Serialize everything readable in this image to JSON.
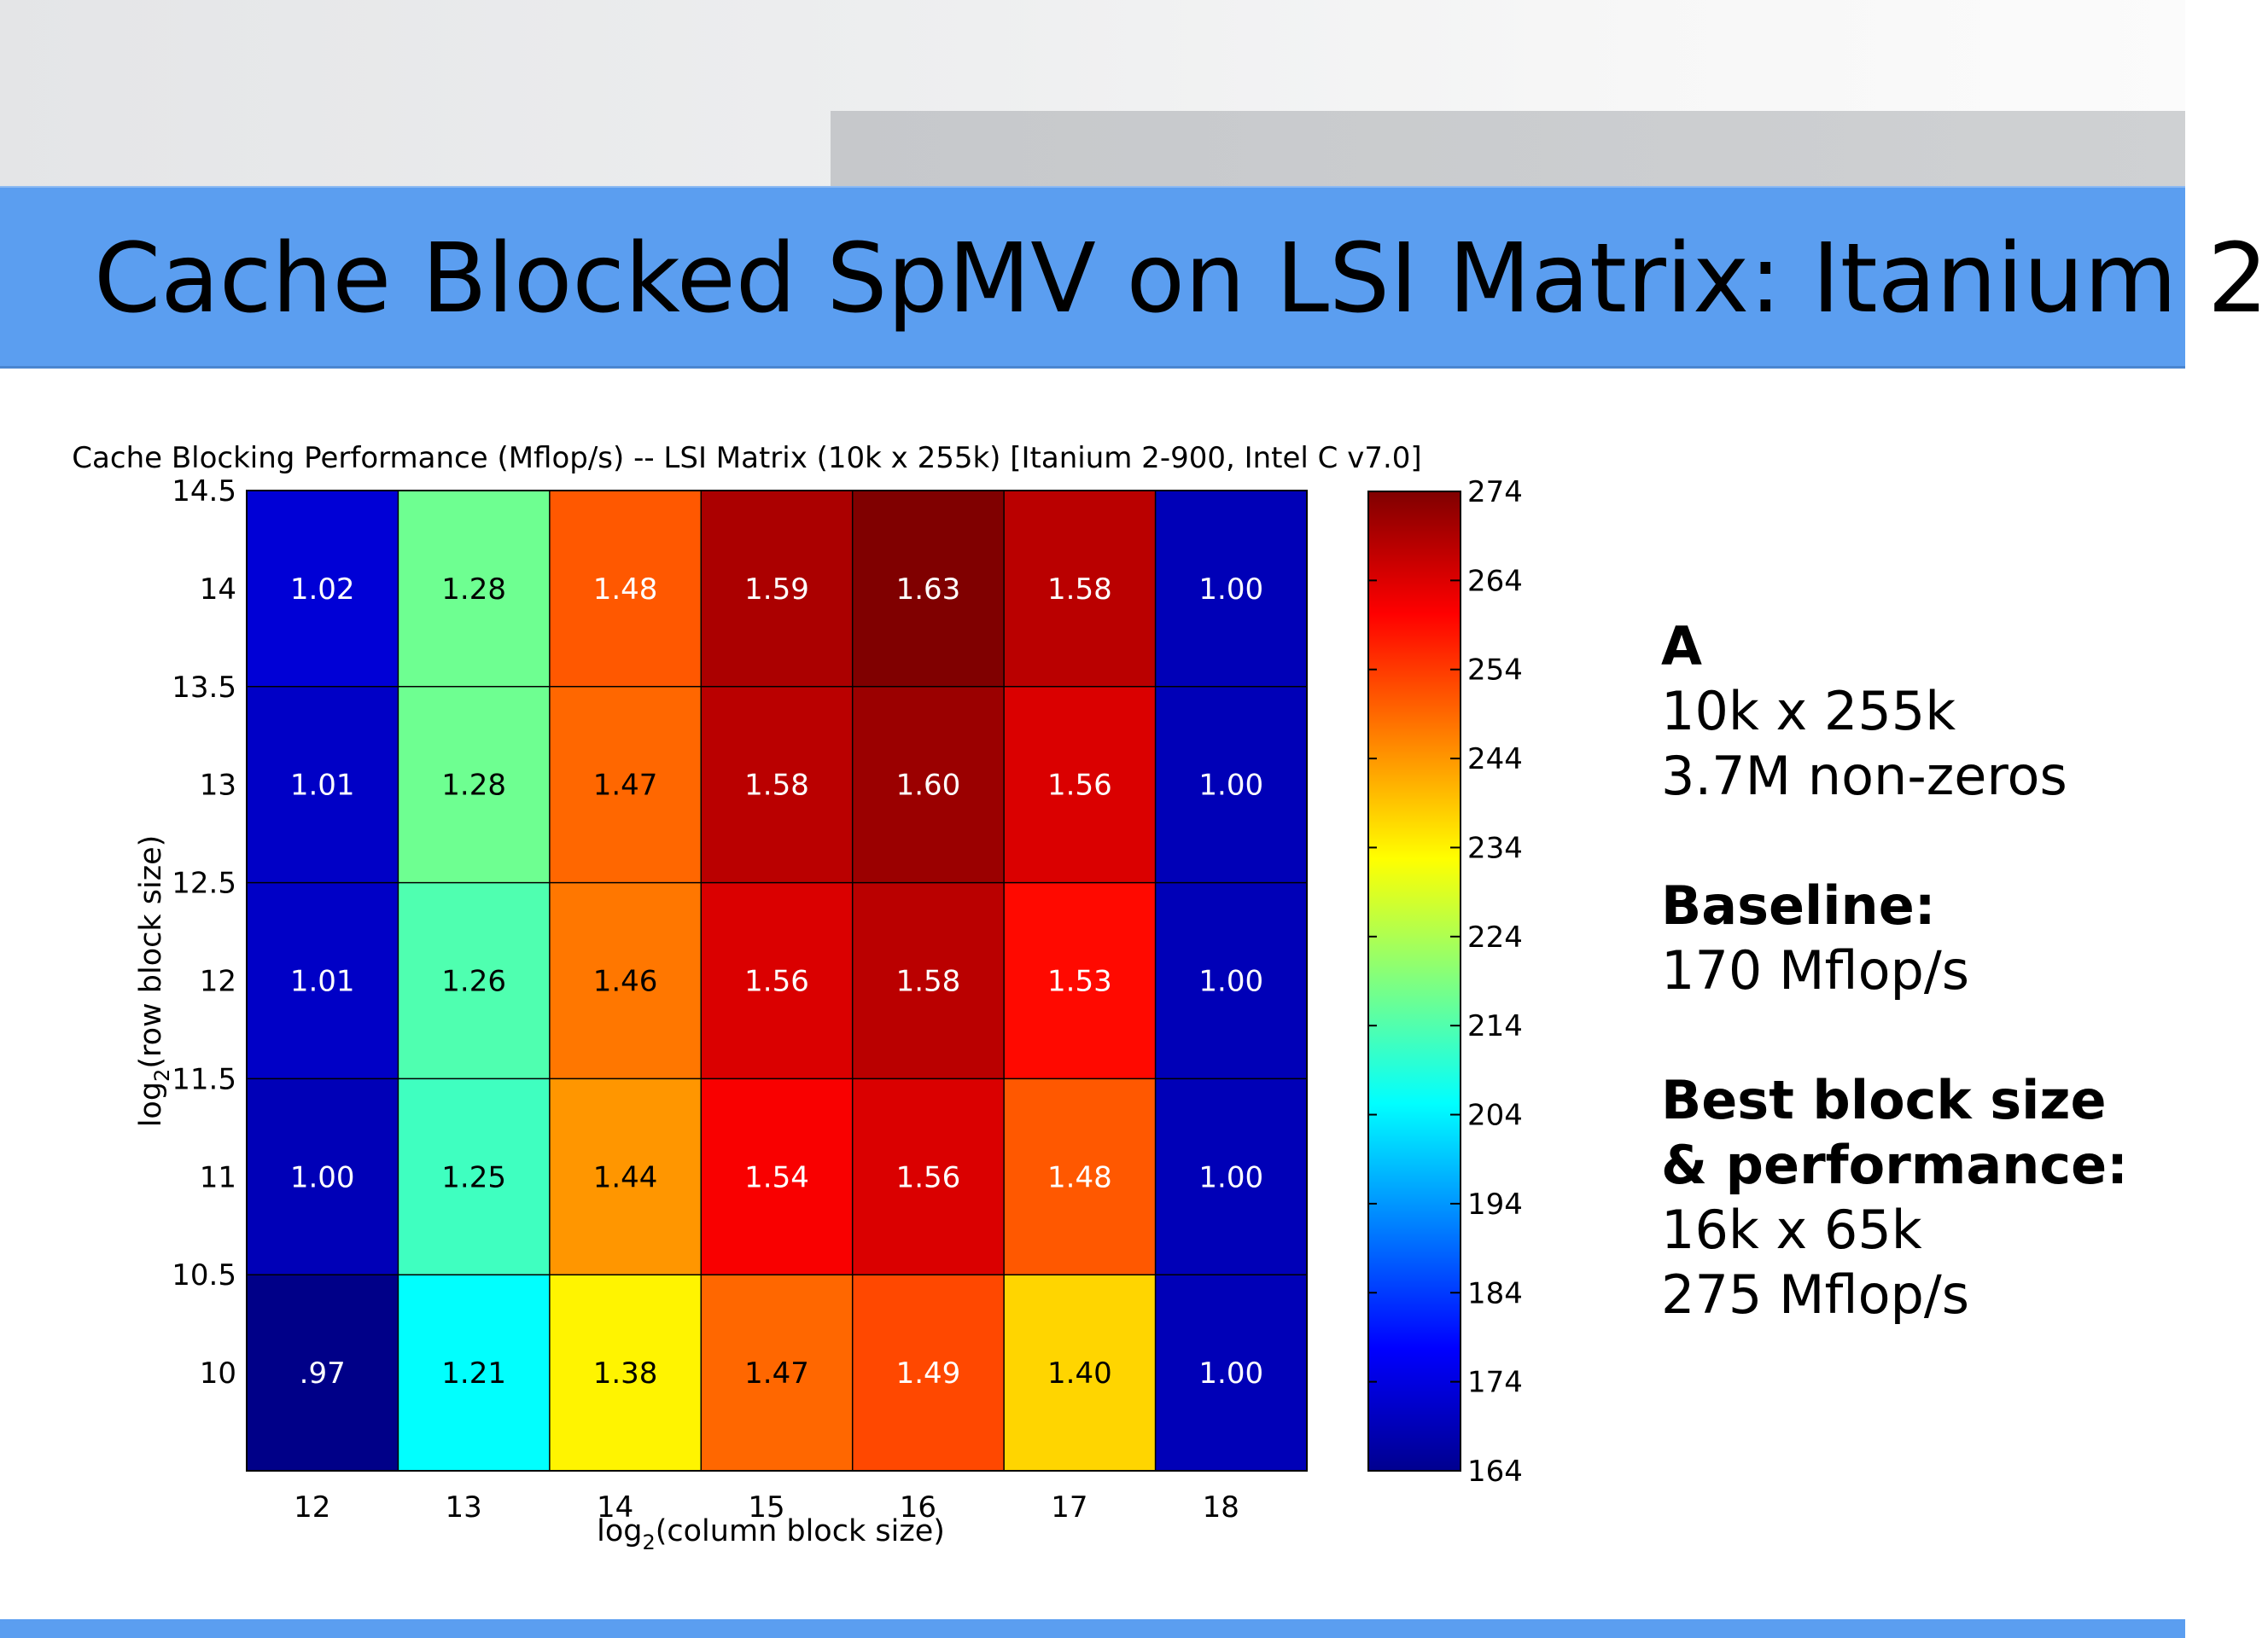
{
  "slide": {
    "title": "Cache Blocked SpMV on LSI Matrix: Itanium 2"
  },
  "side_panel": {
    "matrix_label": "A",
    "matrix_dims": "10k x 255k",
    "matrix_nnz": "3.7M non-zeros",
    "baseline_label": "Baseline:",
    "baseline_value": "170 Mflop/s",
    "best_label_line1": "Best block size",
    "best_label_line2": "& performance:",
    "best_block": "16k x 65k",
    "best_perf": "275 Mflop/s"
  },
  "chart_data": {
    "type": "heatmap",
    "title": "Cache Blocking Performance (Mflop/s) -- LSI Matrix (10k x 255k) [Itanium 2-900, Intel C v7.0]",
    "xlabel_base": "log",
    "xlabel_sub": "2",
    "xlabel_rest": "(column block size)",
    "ylabel_base": "log",
    "ylabel_sub": "2",
    "ylabel_rest": "(row block size)",
    "x_categories": [
      "12",
      "13",
      "14",
      "15",
      "16",
      "17",
      "18"
    ],
    "y_ticks": [
      "14.5",
      "14",
      "13.5",
      "13",
      "12.5",
      "12",
      "11.5",
      "11",
      "10.5",
      "10"
    ],
    "y_rows": [
      14,
      13,
      12,
      11,
      10
    ],
    "cell_labels": [
      [
        "1.02",
        "1.28",
        "1.48",
        "1.59",
        "1.63",
        "1.58",
        "1.00"
      ],
      [
        "1.01",
        "1.28",
        "1.47",
        "1.58",
        "1.60",
        "1.56",
        "1.00"
      ],
      [
        "1.01",
        "1.26",
        "1.46",
        "1.56",
        "1.58",
        "1.53",
        "1.00"
      ],
      [
        "1.00",
        "1.25",
        "1.44",
        "1.54",
        "1.56",
        "1.48",
        "1.00"
      ],
      [
        ".97",
        "1.21",
        "1.38",
        "1.47",
        "1.49",
        "1.40",
        "1.00"
      ]
    ],
    "ratios": [
      [
        1.02,
        1.28,
        1.48,
        1.59,
        1.63,
        1.58,
        1.0
      ],
      [
        1.01,
        1.28,
        1.47,
        1.58,
        1.6,
        1.56,
        1.0
      ],
      [
        1.01,
        1.26,
        1.46,
        1.56,
        1.58,
        1.53,
        1.0
      ],
      [
        1.0,
        1.25,
        1.44,
        1.54,
        1.56,
        1.48,
        1.0
      ],
      [
        0.97,
        1.21,
        1.38,
        1.47,
        1.49,
        1.4,
        1.0
      ]
    ],
    "baseline_mflops": 170,
    "colorbar_ticks": [
      "274",
      "264",
      "254",
      "244",
      "234",
      "224",
      "214",
      "204",
      "194",
      "184",
      "174",
      "164"
    ],
    "colorbar_range": [
      164,
      275
    ],
    "colormap": "jet",
    "label_color_light": "#ffffff",
    "label_color_dark": "#000000"
  }
}
